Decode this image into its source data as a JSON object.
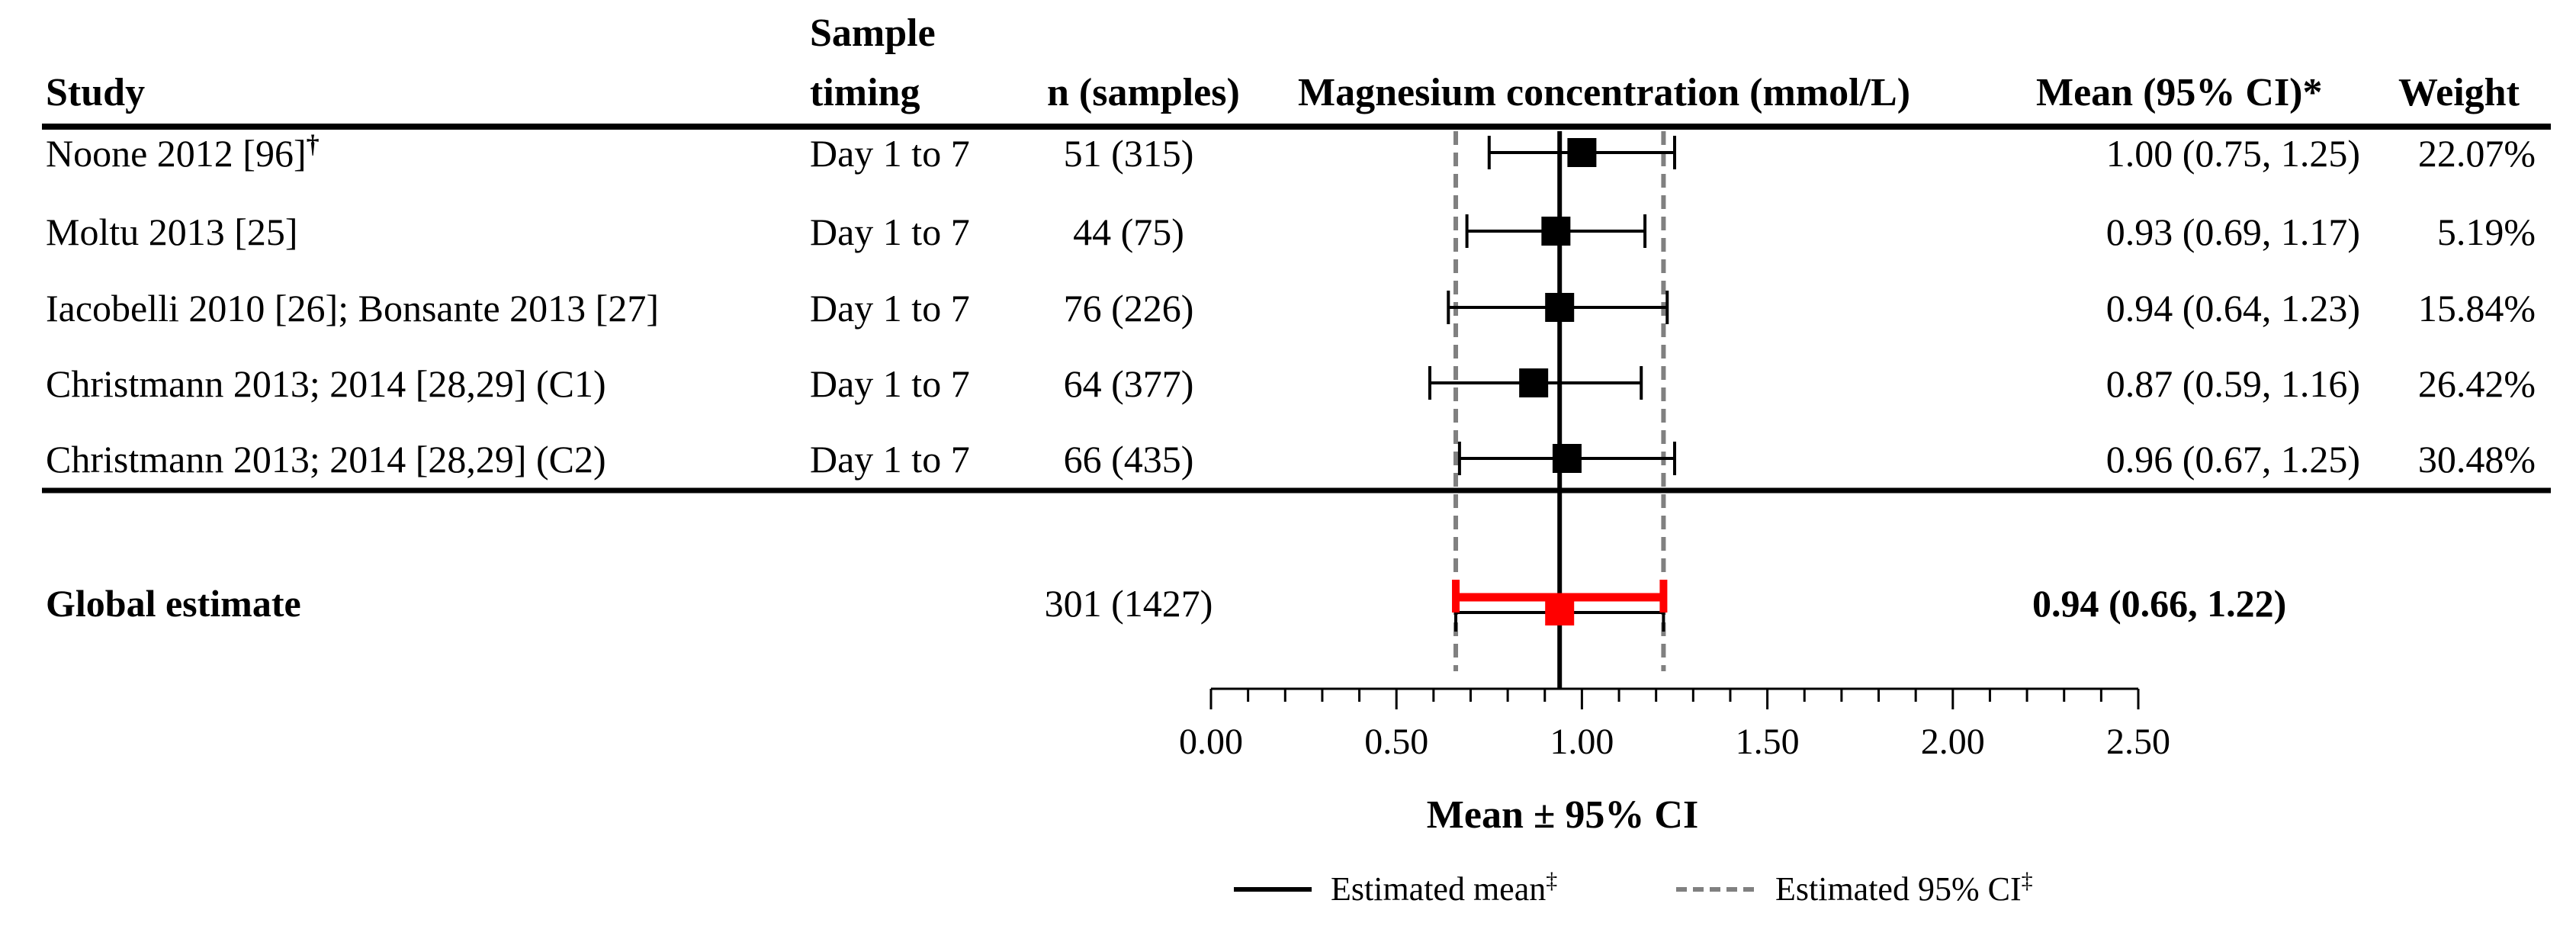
{
  "headers": {
    "study": "Study",
    "timing_line1": "Sample",
    "timing_line2": "timing",
    "n": "n (samples)",
    "plot": "Magnesium concentration (mmol/L)",
    "mean": "Mean (95% CI)*",
    "weight": "Weight"
  },
  "studies": [
    {
      "name": "Noone 2012 [96]",
      "mark": "†",
      "timing": "Day 1 to 7",
      "n": "51 (315)",
      "ci_text": "1.00 (0.75, 1.25)",
      "weight": "22.07%"
    },
    {
      "name": "Moltu 2013 [25]",
      "mark": "",
      "timing": "Day 1 to 7",
      "n": "44 (75)",
      "ci_text": "0.93 (0.69, 1.17)",
      "weight": "5.19%"
    },
    {
      "name": "Iacobelli 2010 [26]; Bonsante 2013 [27]",
      "mark": "",
      "timing": "Day 1 to 7",
      "n": "76 (226)",
      "ci_text": "0.94 (0.64, 1.23)",
      "weight": "15.84%"
    },
    {
      "name": "Christmann 2013; 2014 [28,29] (C1)",
      "mark": "",
      "timing": "Day 1 to 7",
      "n": "64 (377)",
      "ci_text": "0.87 (0.59, 1.16)",
      "weight": "26.42%"
    },
    {
      "name": "Christmann 2013; 2014  [28,29] (C2)",
      "mark": "",
      "timing": "Day 1 to 7",
      "n": "66 (435)",
      "ci_text": "0.96 (0.67, 1.25)",
      "weight": "30.48%"
    }
  ],
  "global": {
    "label": "Global estimate",
    "n": "301 (1427)",
    "ci_text": "0.94 (0.66, 1.22)"
  },
  "xaxis": {
    "label": "Mean ± 95% CI",
    "ticks": [
      "0.00",
      "0.50",
      "1.00",
      "1.50",
      "2.00",
      "2.50"
    ]
  },
  "legend": {
    "mean_label": "Estimated mean",
    "mean_mark": "‡",
    "ci_label": "Estimated 95% CI",
    "ci_mark": "‡"
  },
  "colors": {
    "marker": "#000000",
    "global": "#ff0000",
    "ci_lines": "#808080"
  },
  "chart_data": {
    "type": "forest",
    "xlabel": "Mean ± 95% CI",
    "xlim": [
      0,
      2.5
    ],
    "xticks": [
      0,
      0.5,
      1.0,
      1.5,
      2.0,
      2.5
    ],
    "points": [
      {
        "study": "Noone 2012 [96]",
        "mean": 1.0,
        "lower": 0.75,
        "upper": 1.25
      },
      {
        "study": "Moltu 2013 [25]",
        "mean": 0.93,
        "lower": 0.69,
        "upper": 1.17
      },
      {
        "study": "Iacobelli 2010 [26]; Bonsante 2013 [27]",
        "mean": 0.94,
        "lower": 0.64,
        "upper": 1.23
      },
      {
        "study": "Christmann 2013; 2014 [28,29] (C1)",
        "mean": 0.87,
        "lower": 0.59,
        "upper": 1.16
      },
      {
        "study": "Christmann 2013; 2014  [28,29] (C2)",
        "mean": 0.96,
        "lower": 0.67,
        "upper": 1.25
      }
    ],
    "global": {
      "mean": 0.94,
      "lower": 0.66,
      "upper": 1.22
    },
    "reference_lines": {
      "mean": 0.94,
      "ci_lower": 0.66,
      "ci_upper": 1.22
    }
  }
}
